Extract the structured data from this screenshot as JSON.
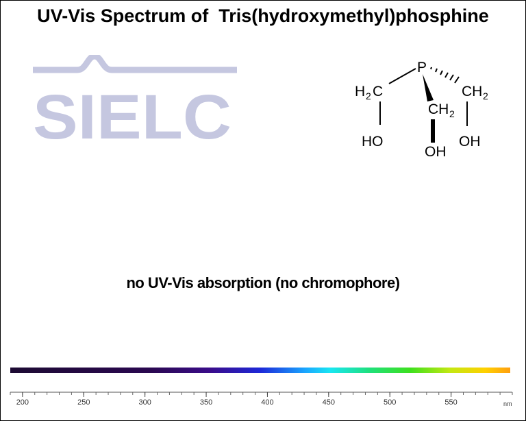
{
  "title": "UV-Vis Spectrum of  Tris(hydroxymethyl)phosphine",
  "logo": {
    "text": "SIELC",
    "color": "#c5c7e0"
  },
  "molecule": {
    "phosphorus": "P",
    "ch2": "CH",
    "sub2": "2",
    "h2c_h": "H",
    "h2c_c": "C",
    "oh": "OH",
    "ho": "HO"
  },
  "note": "no UV-Vis absorption (no chromophore)",
  "chart_data": {
    "type": "line",
    "title": "UV-Vis Spectrum of  Tris(hydroxymethyl)phosphine",
    "xlabel": "nm",
    "ylabel": "",
    "xlim": [
      190,
      600
    ],
    "x_ticks": [
      200,
      250,
      300,
      350,
      400,
      450,
      500,
      550
    ],
    "series": [],
    "annotations": [
      "no UV-Vis absorption (no chromophore)"
    ],
    "grid": false
  }
}
